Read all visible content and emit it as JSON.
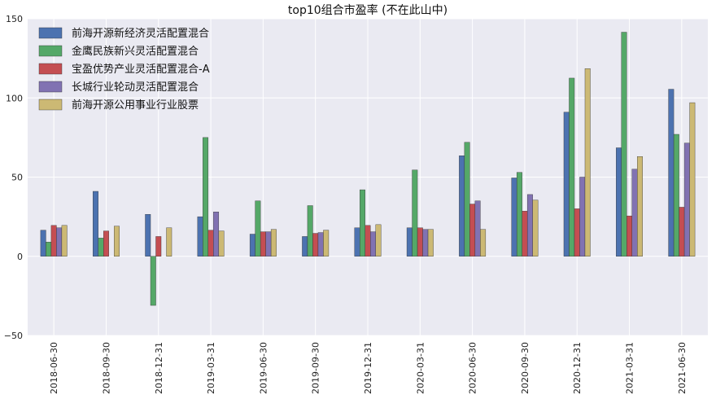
{
  "chart_data": {
    "type": "bar",
    "title": "top10组合市盈率 (不在此山中)",
    "xlabel": "",
    "ylabel": "",
    "ylim": [
      -50,
      150
    ],
    "yticks": [
      -50,
      0,
      50,
      100,
      150
    ],
    "grid": true,
    "legend_position": "top-left",
    "categories": [
      "2018-06-30",
      "2018-09-30",
      "2018-12-31",
      "2019-03-31",
      "2019-06-30",
      "2019-09-30",
      "2019-12-31",
      "2020-03-31",
      "2020-06-30",
      "2020-09-30",
      "2020-12-31",
      "2021-03-31",
      "2021-06-30"
    ],
    "series": [
      {
        "name": "前海开源新经济灵活配置混合",
        "color": "#4c72b0",
        "values": [
          16.5,
          41,
          26.5,
          25,
          14,
          12.5,
          18,
          18,
          63.5,
          49.5,
          91,
          68.5,
          105.5
        ]
      },
      {
        "name": "金鹰民族新兴灵活配置混合",
        "color": "#55a868",
        "values": [
          9,
          11.5,
          -31,
          75,
          35,
          32,
          42,
          54.5,
          72,
          53,
          112.5,
          141.5,
          77
        ]
      },
      {
        "name": "宝盈优势产业灵活配置混合-A",
        "color": "#c44e52",
        "values": [
          19.5,
          16,
          12.5,
          16.5,
          15.5,
          14.5,
          19.5,
          18,
          33,
          28.5,
          30,
          25.5,
          31
        ]
      },
      {
        "name": "长城行业轮动灵活配置混合",
        "color": "#8172b2",
        "values": [
          18,
          0,
          0,
          28,
          15.5,
          15,
          15.5,
          17,
          35,
          39,
          50,
          55,
          71.5
        ]
      },
      {
        "name": "前海开源公用事业行业股票",
        "color": "#ccb974",
        "values": [
          19.5,
          19,
          18,
          16,
          17,
          16.5,
          20,
          17,
          17,
          35.5,
          118.5,
          63,
          97
        ]
      }
    ]
  }
}
